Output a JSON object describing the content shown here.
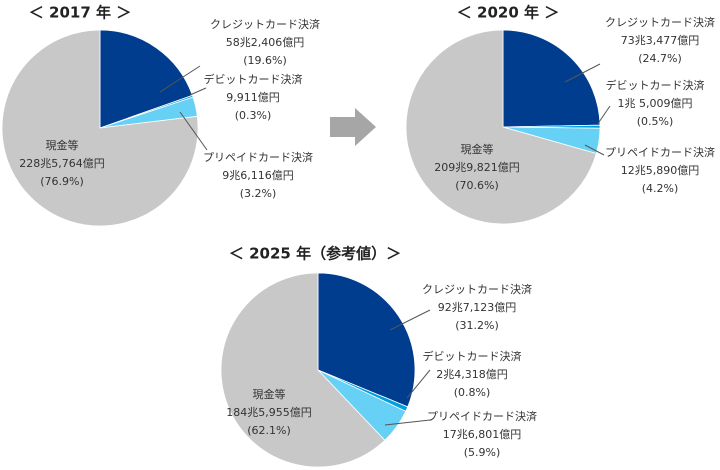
{
  "chart_data": [
    {
      "type": "pie",
      "title": "＜ 2017 年 ＞",
      "categories": [
        "クレジットカード決済",
        "デビットカード決済",
        "プリペイドカード決済",
        "現金等"
      ],
      "amounts": [
        "58兆2,406億円",
        "9,911億円",
        "9兆6,116億円",
        "228兆5,764億円"
      ],
      "values": [
        19.6,
        0.3,
        3.2,
        76.9
      ],
      "value_labels": [
        "(19.6%)",
        "(0.3%)",
        "(3.2%)",
        "(76.9%)"
      ],
      "colors": [
        "#003d8f",
        "#00a0e0",
        "#66d0f5",
        "#c8c8c8"
      ]
    },
    {
      "type": "pie",
      "title": "＜ 2020 年 ＞",
      "categories": [
        "クレジットカード決済",
        "デビットカード決済",
        "プリペイドカード決済",
        "現金等"
      ],
      "amounts": [
        "73兆3,477億円",
        "1兆 5,009億円",
        "12兆5,890億円",
        "209兆9,821億円"
      ],
      "values": [
        24.7,
        0.5,
        4.2,
        70.6
      ],
      "value_labels": [
        "(24.7%)",
        "(0.5%)",
        "(4.2%)",
        "(70.6%)"
      ],
      "colors": [
        "#003d8f",
        "#00a0e0",
        "#66d0f5",
        "#c8c8c8"
      ]
    },
    {
      "type": "pie",
      "title": "＜ 2025 年（参考値）＞",
      "categories": [
        "クレジットカード決済",
        "デビットカード決済",
        "プリペイドカード決済",
        "現金等"
      ],
      "amounts": [
        "92兆7,123億円",
        "2兆4,318億円",
        "17兆6,801億円",
        "184兆5,955億円"
      ],
      "values": [
        31.2,
        0.8,
        5.9,
        62.1
      ],
      "value_labels": [
        "(31.2%)",
        "(0.8%)",
        "(5.9%)",
        "(62.1%)"
      ],
      "colors": [
        "#003d8f",
        "#00a0e0",
        "#66d0f5",
        "#c8c8c8"
      ]
    }
  ]
}
